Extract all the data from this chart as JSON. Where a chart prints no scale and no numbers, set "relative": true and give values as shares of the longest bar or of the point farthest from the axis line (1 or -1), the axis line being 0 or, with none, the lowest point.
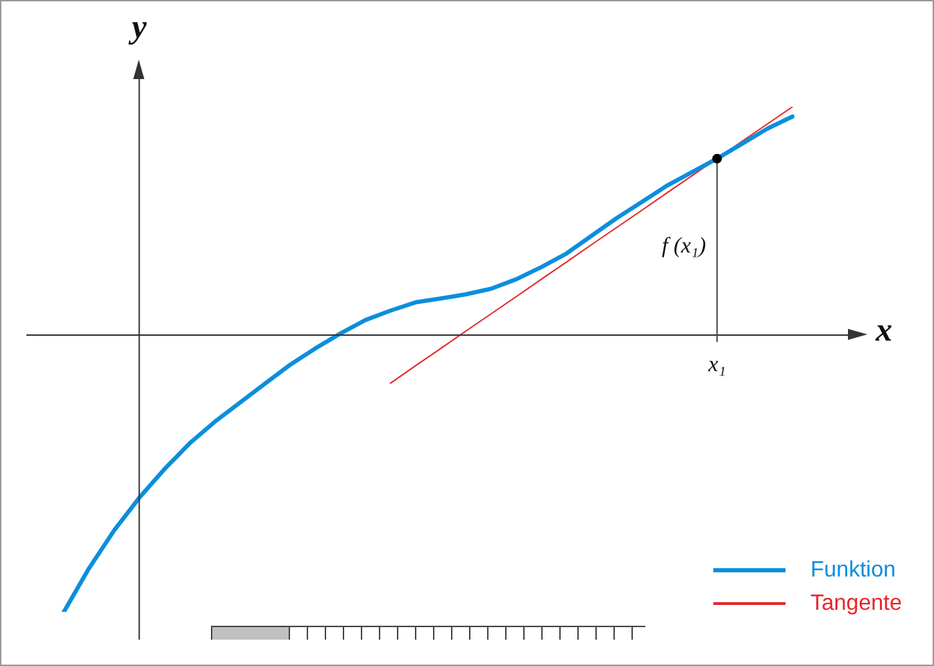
{
  "chart_data": {
    "type": "line",
    "relative": true,
    "xlabel": "x",
    "ylabel": "y",
    "legend": "bottom right",
    "categories": [
      null,
      null,
      null,
      null,
      null,
      null,
      null,
      null,
      null,
      null,
      null,
      null,
      null,
      null,
      null,
      null,
      null,
      null,
      null,
      null,
      null,
      null,
      null,
      null,
      null,
      null,
      null,
      null,
      null,
      null
    ],
    "series": [
      {
        "name": "Funktion",
        "color": "#0a8fdc",
        "values": [
          -1,
          -0.843,
          -0.706,
          -0.588,
          -0.485,
          -0.392,
          -0.314,
          -0.245,
          -0.176,
          -0.108,
          -0.049,
          0.005,
          0.054,
          0.088,
          0.118,
          0.132,
          0.147,
          0.167,
          0.201,
          0.245,
          0.294,
          0.358,
          0.422,
          0.48,
          0.539,
          0.588,
          0.637,
          0.691,
          0.745,
          0.789
        ]
      },
      {
        "name": "Tangente",
        "color": "#e8262a",
        "values": [
          null,
          null,
          null,
          null,
          null,
          null,
          null,
          null,
          null,
          null,
          null,
          null,
          null,
          -0.174,
          -0.111,
          -0.049,
          0.014,
          0.076,
          0.138,
          0.201,
          0.263,
          0.326,
          0.388,
          0.45,
          0.513,
          0.575,
          0.637,
          0.7,
          0.762,
          0.824
        ]
      }
    ],
    "annotations": [
      "x₁",
      "f (x₁)"
    ]
  }
}
